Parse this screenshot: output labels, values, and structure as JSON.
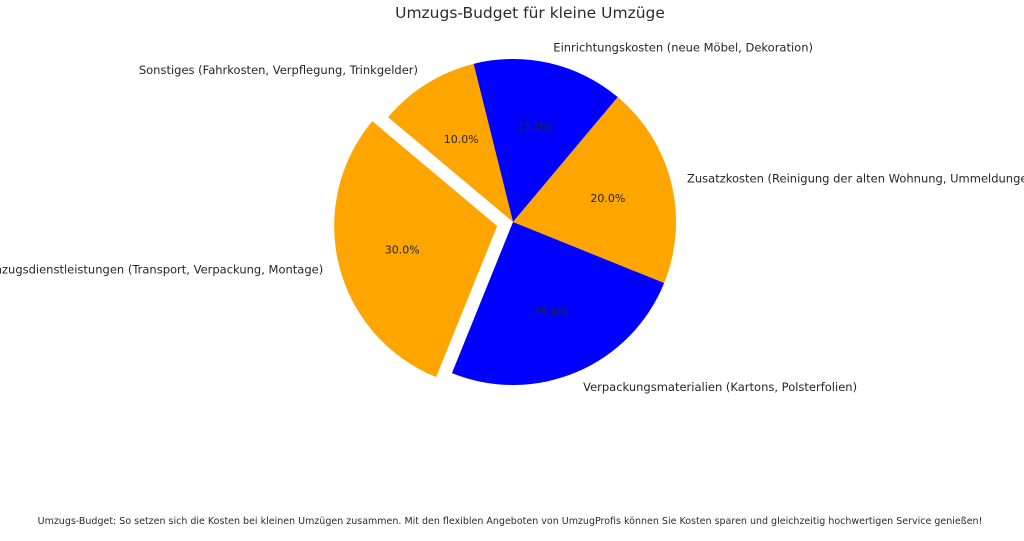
{
  "header": {
    "title": "Umzugs-Budget für kleine Umzüge"
  },
  "footer": {
    "caption": "Umzugs-Budget: So setzen sich die Kosten bei kleinen Umzügen zusammen. Mit den flexiblen Angeboten von UmzugProfis können Sie Kosten sparen und gleichzeitig hochwertigen Service genießen!"
  },
  "chart_data": {
    "type": "pie",
    "title": "Umzugs-Budget für kleine Umzüge",
    "labels": [
      "Einrichtungskosten (neue Möbel, Dekoration)",
      "Zusatzkosten (Reinigung der alten Wohnung, Ummeldungen)",
      "Verpackungsmaterialien (Kartons, Polsterfolien)",
      "Umzugsdienstleistungen (Transport, Verpackung, Montage)",
      "Sonstiges (Fahrkosten, Verpflegung, Trinkgelder)"
    ],
    "values": [
      15,
      20,
      25,
      30,
      10
    ],
    "pct_labels": [
      "15.0%",
      "20.0%",
      "25.0%",
      "30.0%",
      "10.0%"
    ],
    "colors": [
      "#0000ff",
      "#ffa500",
      "#0000ff",
      "#ffa500",
      "#ffa500"
    ],
    "explode": [
      0,
      0,
      0,
      0.1,
      0
    ],
    "start_angle": 104,
    "direction": "clockwise",
    "legend": "none",
    "grid": "off",
    "label_color": "#262626",
    "pct_color": "#262626",
    "background": "#ffffff"
  }
}
